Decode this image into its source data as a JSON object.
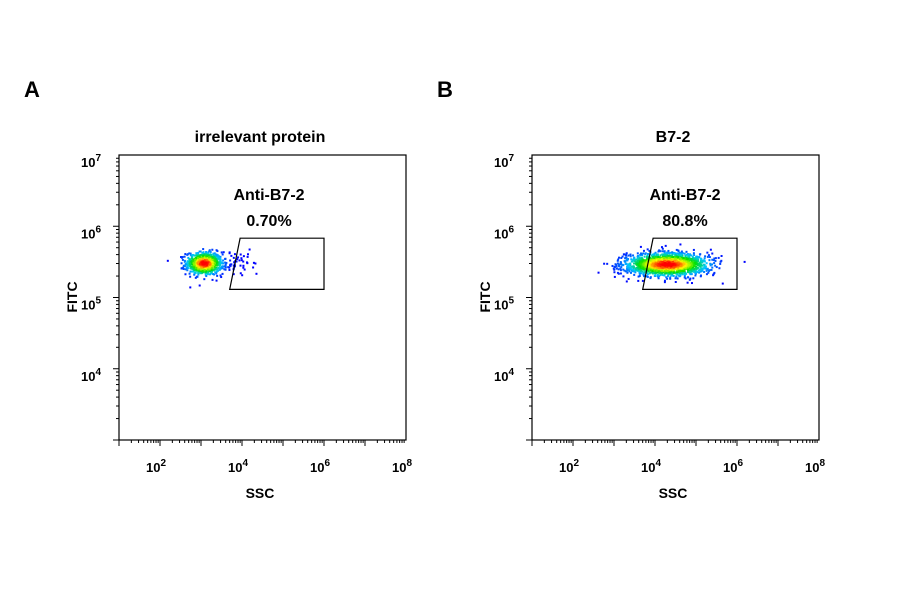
{
  "panels": [
    {
      "letter": "A",
      "title": "irrelevant protein",
      "gate": {
        "name": "Anti-B7-2",
        "percent": "0.70%"
      }
    },
    {
      "letter": "B",
      "title": "B7-2",
      "gate": {
        "name": "Anti-B7-2",
        "percent": "80.8%"
      }
    }
  ],
  "chart_data": [
    {
      "type": "scatter",
      "title": "irrelevant protein",
      "xlabel": "SSC",
      "ylabel": "FITC",
      "xscale": "log",
      "yscale": "log",
      "xlim": [
        10,
        100000000
      ],
      "ylim": [
        1000,
        10000000
      ],
      "x_tick_values": [
        100,
        10000,
        1000000,
        100000000
      ],
      "y_tick_values": [
        10000,
        100000,
        1000000,
        10000000
      ],
      "density_colormap": [
        "#0000ff",
        "#00c8ff",
        "#00e000",
        "#ffff00",
        "#ff0000"
      ],
      "population": {
        "x_center": 1200,
        "x_spread_decades": 0.22,
        "y_center": 300000,
        "y_spread_decades": 0.08,
        "tail_x_max": 12000
      },
      "gate": {
        "name": "Anti-B7-2",
        "percent": 0.7,
        "vertices": [
          [
            5000,
            130000
          ],
          [
            9000,
            680000
          ],
          [
            1000000,
            680000
          ],
          [
            1000000,
            130000
          ]
        ]
      }
    },
    {
      "type": "scatter",
      "title": "B7-2",
      "xlabel": "SSC",
      "ylabel": "FITC",
      "xscale": "log",
      "yscale": "log",
      "xlim": [
        10,
        100000000
      ],
      "ylim": [
        1000,
        10000000
      ],
      "x_tick_values": [
        100,
        10000,
        1000000,
        100000000
      ],
      "y_tick_values": [
        10000,
        100000,
        1000000,
        10000000
      ],
      "density_colormap": [
        "#0000ff",
        "#00c8ff",
        "#00e000",
        "#ffff00",
        "#ff0000"
      ],
      "population": {
        "x_center": 20000,
        "x_spread_decades": 0.5,
        "y_center": 290000,
        "y_spread_decades": 0.08,
        "tail_x_min": 1000
      },
      "gate": {
        "name": "Anti-B7-2",
        "percent": 80.8,
        "vertices": [
          [
            5000,
            130000
          ],
          [
            9000,
            680000
          ],
          [
            1000000,
            680000
          ],
          [
            1000000,
            130000
          ]
        ]
      }
    }
  ]
}
